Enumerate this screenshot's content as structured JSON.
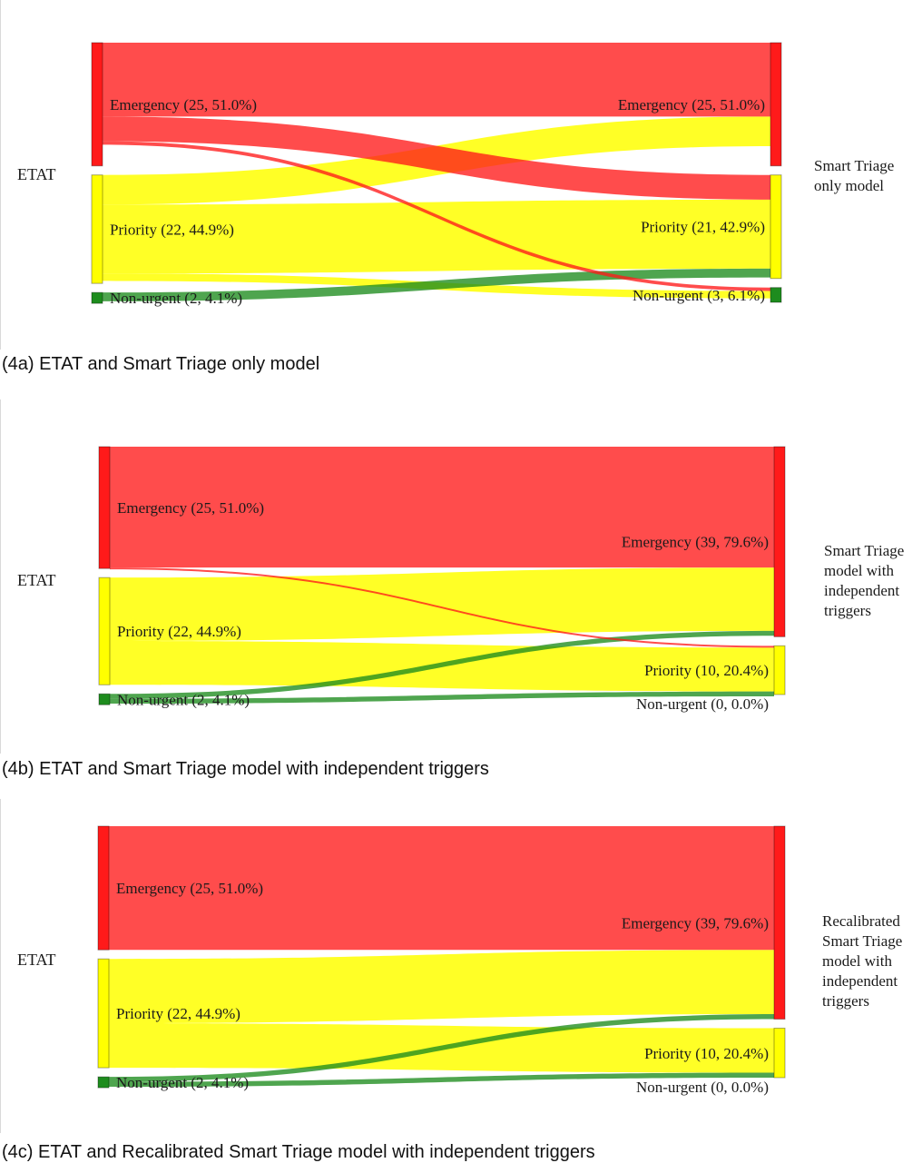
{
  "chart_data": [
    {
      "type": "sankey",
      "left_label": "ETAT",
      "right_label": [
        "Smart Triage",
        "only model"
      ],
      "caption": "(4a) ETAT and Smart Triage only model",
      "colors": {
        "Emergency": "#ff1a1a",
        "Priority": "#ffff00",
        "Non-urgent": "#1e8c1e"
      },
      "left_nodes": [
        {
          "label": "Emergency (25, 51.0%)",
          "name": "Emergency",
          "count": 25
        },
        {
          "label": "Priority (22, 44.9%)",
          "name": "Priority",
          "count": 22
        },
        {
          "label": "Non-urgent (2, 4.1%)",
          "name": "Non-urgent",
          "count": 2
        }
      ],
      "right_nodes": [
        {
          "label": "Emergency (25, 51.0%)",
          "name": "Emergency",
          "count": 25
        },
        {
          "label": "Priority (21, 42.9%)",
          "name": "Priority",
          "count": 21
        },
        {
          "label": "Non-urgent (3, 6.1%)",
          "name": "Non-urgent",
          "count": 3
        }
      ],
      "flows": [
        {
          "from": "Emergency",
          "to": "Emergency",
          "value": 15
        },
        {
          "from": "Emergency",
          "to": "Priority",
          "value": 5
        },
        {
          "from": "Emergency",
          "to": "Non-urgent",
          "value": 0.7
        },
        {
          "from": "Priority",
          "to": "Emergency",
          "value": 6
        },
        {
          "from": "Priority",
          "to": "Priority",
          "value": 14
        },
        {
          "from": "Priority",
          "to": "Non-urgent",
          "value": 1.5
        },
        {
          "from": "Non-urgent",
          "to": "Priority",
          "value": 1.8
        }
      ]
    },
    {
      "type": "sankey",
      "left_label": "ETAT",
      "right_label": [
        "Smart Triage",
        "model with",
        "independent",
        "triggers"
      ],
      "caption": "(4b) ETAT and Smart Triage model with independent triggers",
      "colors": {
        "Emergency": "#ff1a1a",
        "Priority": "#ffff00",
        "Non-urgent": "#1e8c1e"
      },
      "left_nodes": [
        {
          "label": "Emergency (25, 51.0%)",
          "name": "Emergency",
          "count": 25
        },
        {
          "label": "Priority (22, 44.9%)",
          "name": "Priority",
          "count": 22
        },
        {
          "label": "Non-urgent (2, 4.1%)",
          "name": "Non-urgent",
          "count": 2
        }
      ],
      "right_nodes": [
        {
          "label": "Emergency (39, 79.6%)",
          "name": "Emergency",
          "count": 39
        },
        {
          "label": "Priority (10, 20.4%)",
          "name": "Priority",
          "count": 10
        },
        {
          "label": "Non-urgent (0, 0.0%)",
          "name": "Non-urgent",
          "count": 0
        }
      ],
      "flows": [
        {
          "from": "Emergency",
          "to": "Emergency",
          "value": 24.8
        },
        {
          "from": "Emergency",
          "to": "Priority",
          "value": 0.2
        },
        {
          "from": "Priority",
          "to": "Emergency",
          "value": 13
        },
        {
          "from": "Priority",
          "to": "Priority",
          "value": 9
        },
        {
          "from": "Non-urgent",
          "to": "Emergency",
          "value": 1
        },
        {
          "from": "Non-urgent",
          "to": "Priority",
          "value": 1
        }
      ]
    },
    {
      "type": "sankey",
      "left_label": "ETAT",
      "right_label": [
        "Recalibrated",
        "Smart Triage",
        "model with",
        "independent",
        "triggers"
      ],
      "caption": "(4c) ETAT and Recalibrated Smart Triage model with independent triggers",
      "colors": {
        "Emergency": "#ff1a1a",
        "Priority": "#ffff00",
        "Non-urgent": "#1e8c1e"
      },
      "left_nodes": [
        {
          "label": "Emergency (25, 51.0%)",
          "name": "Emergency",
          "count": 25
        },
        {
          "label": "Priority (22, 44.9%)",
          "name": "Priority",
          "count": 22
        },
        {
          "label": "Non-urgent (2, 4.1%)",
          "name": "Non-urgent",
          "count": 2
        }
      ],
      "right_nodes": [
        {
          "label": "Emergency (39, 79.6%)",
          "name": "Emergency",
          "count": 39
        },
        {
          "label": "Priority (10, 20.4%)",
          "name": "Priority",
          "count": 10
        },
        {
          "label": "Non-urgent (0, 0.0%)",
          "name": "Non-urgent",
          "count": 0
        }
      ],
      "flows": [
        {
          "from": "Emergency",
          "to": "Emergency",
          "value": 25
        },
        {
          "from": "Priority",
          "to": "Emergency",
          "value": 13
        },
        {
          "from": "Priority",
          "to": "Priority",
          "value": 9
        },
        {
          "from": "Non-urgent",
          "to": "Emergency",
          "value": 1
        },
        {
          "from": "Non-urgent",
          "to": "Priority",
          "value": 1
        }
      ]
    }
  ]
}
